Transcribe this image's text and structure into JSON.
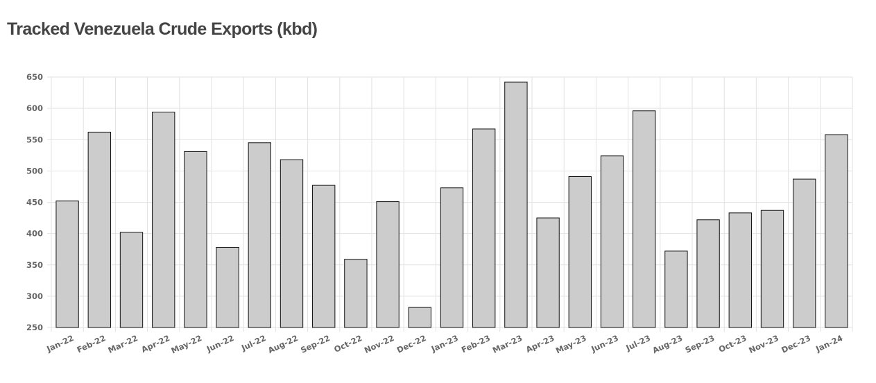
{
  "chart_data": {
    "type": "bar",
    "title": "Tracked Venezuela Crude Exports (kbd)",
    "categories": [
      "Jan-22",
      "Feb-22",
      "Mar-22",
      "Apr-22",
      "May-22",
      "Jun-22",
      "Jul-22",
      "Aug-22",
      "Sep-22",
      "Oct-22",
      "Nov-22",
      "Dec-22",
      "Jan-23",
      "Feb-23",
      "Mar-23",
      "Apr-23",
      "May-23",
      "Jun-23",
      "Jul-23",
      "Aug-23",
      "Sep-23",
      "Oct-23",
      "Nov-23",
      "Dec-23",
      "Jan-24"
    ],
    "values": [
      452,
      562,
      402,
      594,
      531,
      378,
      545,
      518,
      477,
      359,
      451,
      282,
      473,
      567,
      642,
      425,
      491,
      524,
      596,
      372,
      422,
      433,
      437,
      487,
      558
    ],
    "xlabel": "",
    "ylabel": "",
    "ylim": [
      250,
      650
    ],
    "yticks": [
      250,
      300,
      350,
      400,
      450,
      500,
      550,
      600,
      650
    ],
    "grid": true,
    "legend": "none",
    "colors": {
      "bar_fill": "#cccccc",
      "bar_stroke": "#111111",
      "grid": "#e2e2e2",
      "title": "#444444",
      "tick": "#666666"
    }
  }
}
